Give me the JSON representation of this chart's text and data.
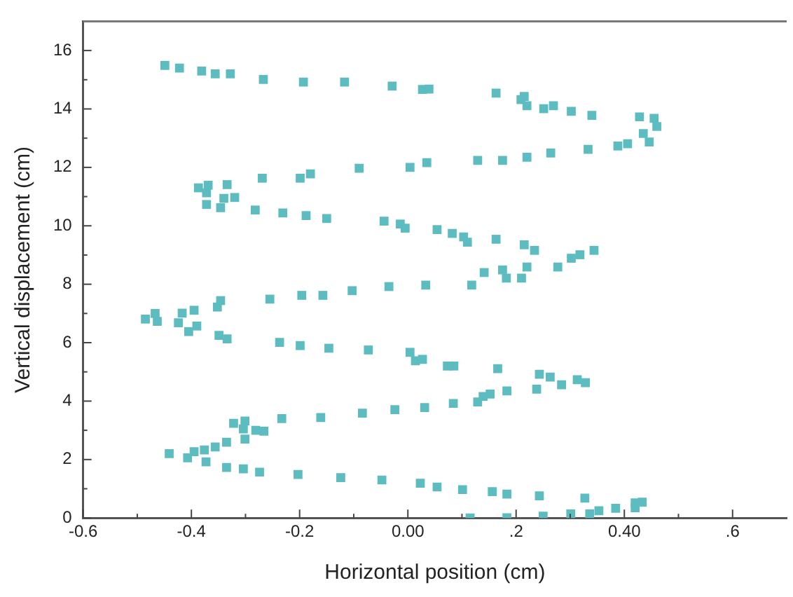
{
  "chart_data": {
    "type": "scatter",
    "xlabel": "Horizontal position (cm)",
    "ylabel": "Vertical displacement (cm)",
    "xlim": [
      -0.6,
      0.7
    ],
    "ylim": [
      0,
      17
    ],
    "xticks": [
      {
        "value": -0.6,
        "label": "-0.6"
      },
      {
        "value": -0.5,
        "label": null
      },
      {
        "value": -0.4,
        "label": "-0.4"
      },
      {
        "value": -0.3,
        "label": null
      },
      {
        "value": -0.2,
        "label": "-0.2"
      },
      {
        "value": -0.1,
        "label": null
      },
      {
        "value": 0,
        "label": "0.00"
      },
      {
        "value": 0.1,
        "label": null
      },
      {
        "value": 0.2,
        "label": ".2"
      },
      {
        "value": 0.3,
        "label": null
      },
      {
        "value": 0.4,
        "label": "0.40"
      },
      {
        "value": 0.5,
        "label": null
      },
      {
        "value": 0.6,
        "label": ".6"
      }
    ],
    "yticks": [
      0,
      {
        "value": 1,
        "label": null
      },
      2,
      {
        "value": 3,
        "label": null
      },
      4,
      {
        "value": 5,
        "label": null
      },
      6,
      {
        "value": 7,
        "label": null
      },
      8,
      {
        "value": 9,
        "label": null
      },
      10,
      {
        "value": 11,
        "label": null
      },
      12,
      {
        "value": 13,
        "label": null
      },
      14,
      {
        "value": 15,
        "label": null
      },
      16
    ],
    "grid": false,
    "legend": false,
    "marker": "square",
    "series": [
      {
        "color": "#5cbcc0",
        "x": [
          -0.449,
          -0.422,
          -0.381,
          -0.356,
          -0.328,
          -0.267,
          -0.193,
          -0.117,
          -0.029,
          0.027,
          0.039,
          0.163,
          0.215,
          0.209,
          0.22,
          0.251,
          0.269,
          0.302,
          0.34,
          0.428,
          0.455,
          0.46,
          0.435,
          0.446,
          0.406,
          0.388,
          0.333,
          0.264,
          0.22,
          0.175,
          0.129,
          0.035,
          0.004,
          -0.09,
          -0.18,
          -0.199,
          -0.269,
          -0.334,
          -0.369,
          -0.387,
          -0.372,
          -0.34,
          -0.32,
          -0.372,
          -0.346,
          -0.282,
          -0.231,
          -0.188,
          -0.15,
          -0.044,
          -0.014,
          -0.005,
          0.054,
          0.082,
          0.103,
          0.11,
          0.163,
          0.215,
          0.234,
          0.344,
          0.318,
          0.302,
          0.277,
          0.22,
          0.21,
          0.182,
          0.175,
          0.141,
          0.118,
          0.033,
          -0.035,
          -0.103,
          -0.157,
          -0.196,
          -0.255,
          -0.346,
          -0.352,
          -0.395,
          -0.417,
          -0.467,
          -0.485,
          -0.463,
          -0.424,
          -0.39,
          -0.405,
          -0.349,
          -0.334,
          -0.237,
          -0.199,
          -0.146,
          -0.073,
          0.004,
          0.014,
          0.027,
          0.073,
          0.085,
          0.166,
          0.243,
          0.263,
          0.284,
          0.313,
          0.328,
          0.238,
          0.183,
          0.152,
          0.139,
          0.129,
          0.084,
          0.031,
          -0.024,
          -0.084,
          -0.161,
          -0.233,
          -0.322,
          -0.301,
          -0.304,
          -0.281,
          -0.266,
          -0.301,
          -0.335,
          -0.356,
          -0.376,
          -0.395,
          -0.407,
          -0.441,
          -0.373,
          -0.335,
          -0.304,
          -0.274,
          -0.203,
          -0.124,
          -0.048,
          0.023,
          0.054,
          0.101,
          0.156,
          0.183,
          0.243,
          0.327,
          0.353,
          0.384,
          0.42,
          0.433,
          0.42,
          0.336,
          0.301,
          0.25,
          0.183,
          0.115
        ],
        "values": [
          15.49,
          15.4,
          15.3,
          15.2,
          15.2,
          15.01,
          14.92,
          14.92,
          14.78,
          14.67,
          14.68,
          14.54,
          14.43,
          14.32,
          14.11,
          14.01,
          14.11,
          13.92,
          13.78,
          13.73,
          13.68,
          13.4,
          13.16,
          12.87,
          12.81,
          12.73,
          12.62,
          12.49,
          12.35,
          12.24,
          12.24,
          12.16,
          12.0,
          11.97,
          11.78,
          11.63,
          11.63,
          11.41,
          11.39,
          11.3,
          11.13,
          10.94,
          10.97,
          10.73,
          10.62,
          10.54,
          10.44,
          10.35,
          10.25,
          10.16,
          10.06,
          9.92,
          9.87,
          9.74,
          9.62,
          9.44,
          9.54,
          9.35,
          9.16,
          9.16,
          9.01,
          8.89,
          8.59,
          8.59,
          8.21,
          8.21,
          8.49,
          8.4,
          7.97,
          7.97,
          7.92,
          7.78,
          7.62,
          7.62,
          7.49,
          7.44,
          7.22,
          7.11,
          7.01,
          7.0,
          6.81,
          6.73,
          6.68,
          6.57,
          6.38,
          6.25,
          6.13,
          6.01,
          5.9,
          5.81,
          5.75,
          5.67,
          5.38,
          5.43,
          5.2,
          5.2,
          5.11,
          4.92,
          4.82,
          4.56,
          4.73,
          4.63,
          4.41,
          4.35,
          4.24,
          4.16,
          3.97,
          3.92,
          3.78,
          3.71,
          3.59,
          3.44,
          3.4,
          3.24,
          3.32,
          3.05,
          3.0,
          2.97,
          2.7,
          2.59,
          2.43,
          2.33,
          2.27,
          2.06,
          2.2,
          1.92,
          1.73,
          1.68,
          1.57,
          1.49,
          1.38,
          1.3,
          1.19,
          1.06,
          0.97,
          0.9,
          0.82,
          0.76,
          0.68,
          0.25,
          0.33,
          0.35,
          0.54,
          0.52,
          0.14,
          0.14,
          0.06,
          0.01,
          0.0
        ]
      }
    ]
  }
}
